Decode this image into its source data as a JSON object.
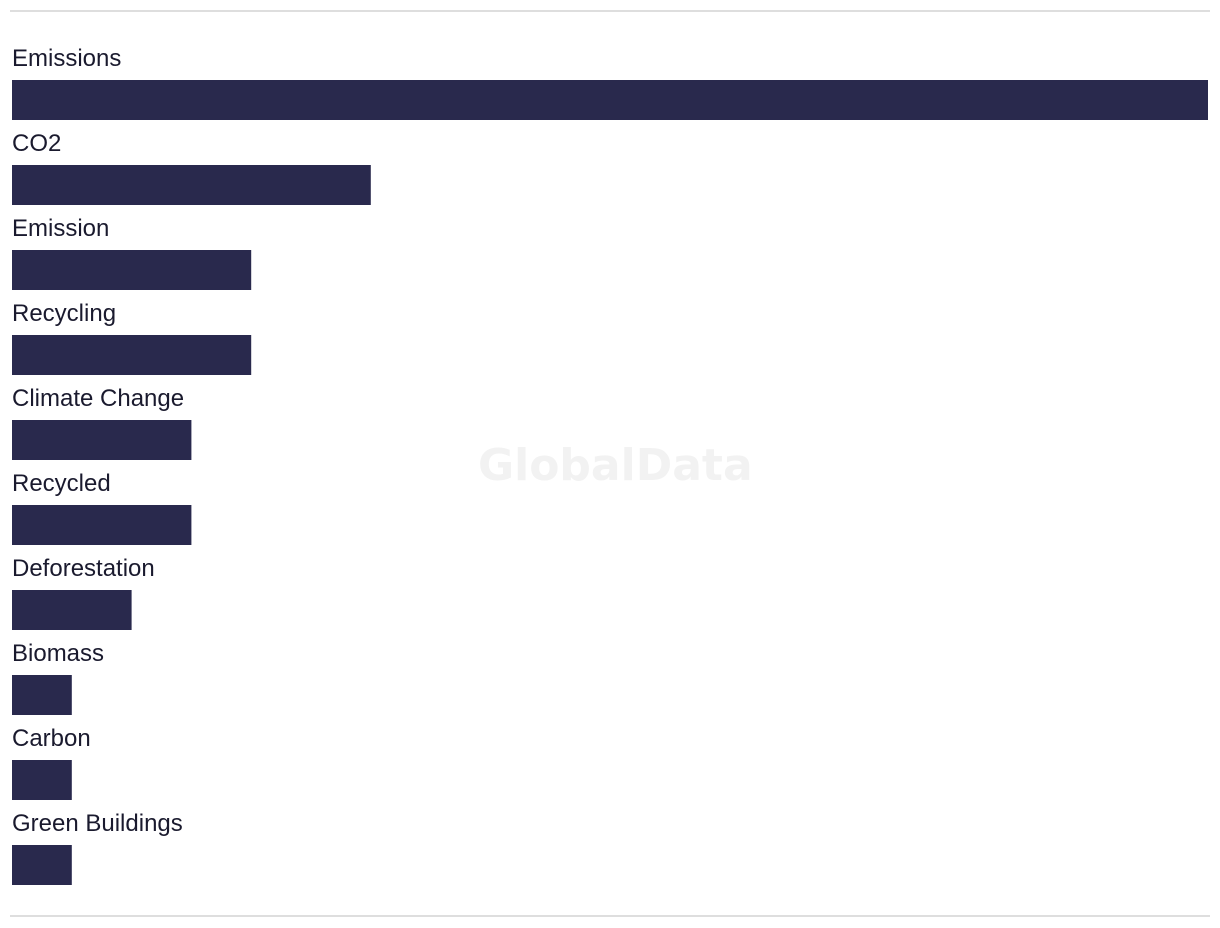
{
  "watermark": "GlobalData",
  "colors": {
    "bar": "#29294d",
    "label": "#1a1a2e",
    "rule": "#dedede",
    "watermark": "#f2f2f2"
  },
  "chart_data": {
    "type": "bar",
    "orientation": "horizontal",
    "categories": [
      "Emissions",
      "CO2",
      "Emission",
      "Recycling",
      "Climate Change",
      "Recycled",
      "Deforestation",
      "Biomass",
      "Carbon",
      "Green Buildings"
    ],
    "values": [
      20,
      6,
      4,
      4,
      3,
      3,
      2,
      1,
      1,
      1
    ],
    "xlim": [
      0,
      20
    ],
    "grid": false,
    "legend": "none"
  }
}
